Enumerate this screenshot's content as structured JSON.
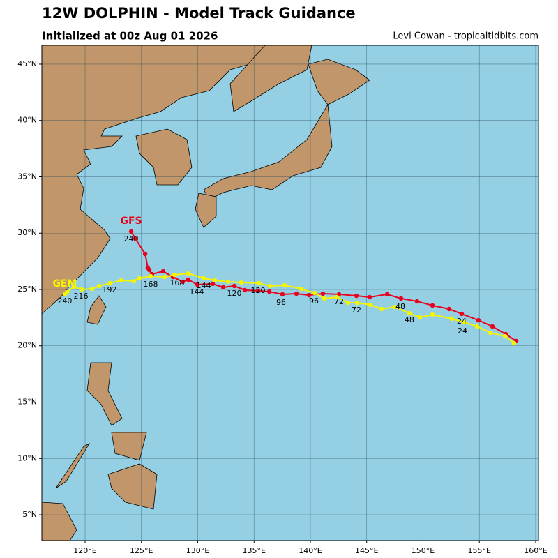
{
  "chart_data": {
    "type": "track-map",
    "title": "12W DOLPHIN - Model Track Guidance",
    "subtitle": "Initialized at 00z Aug 01 2026",
    "credit": "Levi Cowan - tropicaltidbits.com",
    "xlim": [
      116.16,
      160.25
    ],
    "ylim": [
      2.71,
      46.67
    ],
    "xticks": [
      {
        "value": 120,
        "label": "120°E"
      },
      {
        "value": 125,
        "label": "125°E"
      },
      {
        "value": 130,
        "label": "130°E"
      },
      {
        "value": 135,
        "label": "135°E"
      },
      {
        "value": 140,
        "label": "140°E"
      },
      {
        "value": 145,
        "label": "145°E"
      },
      {
        "value": 150,
        "label": "150°E"
      },
      {
        "value": 155,
        "label": "155°E"
      },
      {
        "value": 160,
        "label": "160°E"
      }
    ],
    "yticks": [
      {
        "value": 5,
        "label": "5°N"
      },
      {
        "value": 10,
        "label": "10°N"
      },
      {
        "value": 15,
        "label": "15°N"
      },
      {
        "value": 20,
        "label": "20°N"
      },
      {
        "value": 25,
        "label": "25°N"
      },
      {
        "value": 30,
        "label": "30°N"
      },
      {
        "value": 35,
        "label": "35°N"
      },
      {
        "value": 40,
        "label": "40°N"
      },
      {
        "value": 45,
        "label": "45°N"
      }
    ],
    "grid": true,
    "series": [
      {
        "name": "GFS",
        "color": "#e8001c",
        "x": [
          158.27,
          157.34,
          156.16,
          154.92,
          153.44,
          152.32,
          150.84,
          149.47,
          148.05,
          146.81,
          145.26,
          144.09,
          142.54,
          141.11,
          139.88,
          138.76,
          137.52,
          136.35,
          135.36,
          134.18,
          133.25,
          132.26,
          131.33,
          129.97,
          129.16,
          128.67,
          127.8,
          126.93,
          125.94,
          125.7,
          125.57,
          125.33,
          124.46,
          124.09
        ],
        "values": [
          20.42,
          21.04,
          21.72,
          22.27,
          22.83,
          23.27,
          23.58,
          23.95,
          24.2,
          24.57,
          24.32,
          24.44,
          24.57,
          24.63,
          24.5,
          24.63,
          24.57,
          24.81,
          24.88,
          24.94,
          25.31,
          25.19,
          25.5,
          25.43,
          25.87,
          25.68,
          26.11,
          26.61,
          26.36,
          26.73,
          26.92,
          28.16,
          29.52,
          30.14
        ]
      },
      {
        "name": "GEM",
        "color": "#f5f500",
        "x": [
          158.08,
          157.28,
          155.98,
          154.8,
          153.62,
          152.57,
          150.84,
          149.72,
          148.79,
          147.49,
          146.32,
          145.33,
          144.15,
          143.34,
          142.35,
          141.24,
          140.37,
          139.2,
          137.71,
          136.41,
          135.42,
          133.87,
          132.69,
          131.52,
          130.53,
          129.16,
          127.93,
          127.06,
          125.82,
          124.83,
          124.33,
          123.22,
          122.23,
          121.24,
          120.62,
          119.69,
          119.01,
          118.39,
          118.2
        ],
        "values": [
          20.23,
          20.85,
          21.16,
          21.72,
          22.09,
          22.4,
          22.77,
          22.52,
          22.89,
          23.45,
          23.27,
          23.64,
          23.82,
          23.82,
          24.32,
          24.2,
          24.69,
          25.06,
          25.37,
          25.31,
          25.56,
          25.62,
          25.68,
          25.81,
          26.0,
          26.42,
          26.3,
          26.11,
          26.18,
          25.99,
          25.74,
          25.81,
          25.56,
          25.31,
          25.06,
          25.0,
          25.25,
          24.75,
          24.57
        ]
      }
    ],
    "annotations": [
      {
        "text": "24",
        "x": 153.44,
        "y": 22.15
      },
      {
        "text": "24",
        "x": 153.5,
        "y": 21.28
      },
      {
        "text": "48",
        "x": 147.99,
        "y": 23.45
      },
      {
        "text": "48",
        "x": 148.79,
        "y": 22.27
      },
      {
        "text": "72",
        "x": 142.54,
        "y": 23.89
      },
      {
        "text": "72",
        "x": 144.09,
        "y": 23.14
      },
      {
        "text": "96",
        "x": 137.4,
        "y": 23.82
      },
      {
        "text": "96",
        "x": 140.31,
        "y": 23.95
      },
      {
        "text": "120",
        "x": 133.25,
        "y": 24.63
      },
      {
        "text": "120",
        "x": 135.36,
        "y": 24.88
      },
      {
        "text": "144",
        "x": 129.91,
        "y": 24.75
      },
      {
        "text": "144",
        "x": 130.53,
        "y": 25.31
      },
      {
        "text": "168",
        "x": 125.82,
        "y": 25.43
      },
      {
        "text": "168",
        "x": 128.17,
        "y": 25.56
      },
      {
        "text": "192",
        "x": 122.17,
        "y": 24.94
      },
      {
        "text": "216",
        "x": 119.63,
        "y": 24.38
      },
      {
        "text": "240",
        "x": 118.2,
        "y": 23.95
      },
      {
        "text": "240",
        "x": 124.09,
        "y": 29.46
      }
    ]
  }
}
